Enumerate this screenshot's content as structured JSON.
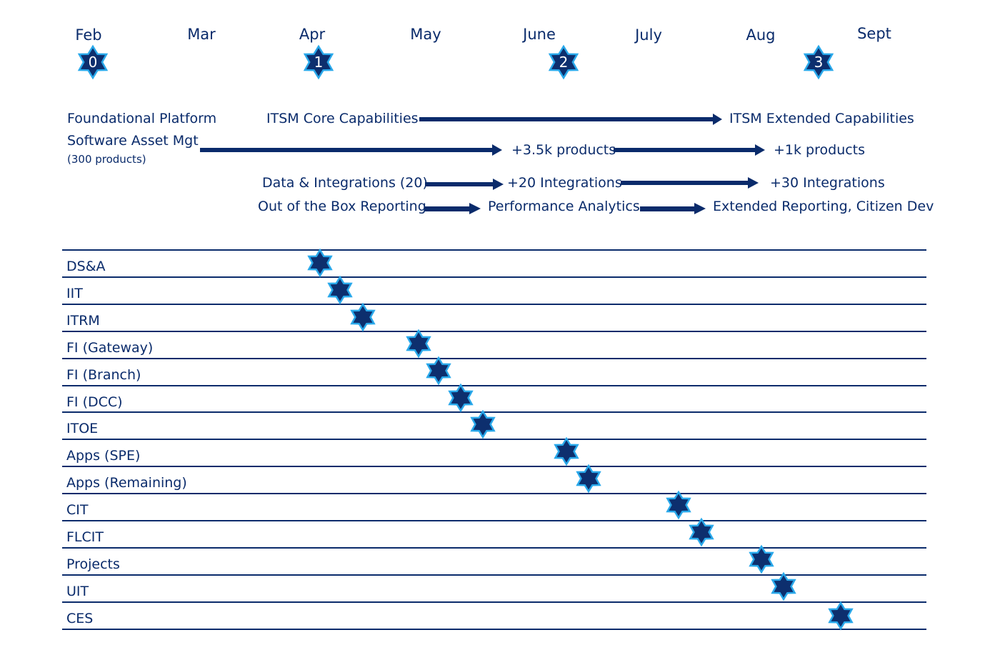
{
  "colors": {
    "navy": "#0a2b6b",
    "star_fill": "#0d2f6e",
    "star_outline": "#29a8ea"
  },
  "months": [
    "Feb",
    "Mar",
    "Apr",
    "May",
    "June",
    "July",
    "Aug",
    "Sept"
  ],
  "milestones": [
    {
      "number": "0",
      "month": "Feb"
    },
    {
      "number": "1",
      "month": "Apr"
    },
    {
      "number": "2",
      "month": "June"
    },
    {
      "number": "3",
      "month": "Aug"
    }
  ],
  "capabilities": {
    "foundational": "Foundational Platform",
    "itsm_core": "ITSM Core Capabilities",
    "itsm_extended": "ITSM Extended Capabilities",
    "sam": "Software Asset Mgt",
    "sam_sub": "(300 products)",
    "sam_plus35k": "+3.5k products",
    "sam_plus1k": "+1k products",
    "data_integrations": "Data & Integrations (20)",
    "plus20": "+20 Integrations",
    "plus30": "+30 Integrations",
    "ootb": "Out of the Box Reporting",
    "perf": "Performance Analytics",
    "extended_reporting": "Extended Reporting, Citizen Dev"
  },
  "rows": [
    {
      "label": "DS&A"
    },
    {
      "label": "IIT"
    },
    {
      "label": "ITRM"
    },
    {
      "label": "FI (Gateway)"
    },
    {
      "label": "FI (Branch)"
    },
    {
      "label": "FI (DCC)"
    },
    {
      "label": "ITOE"
    },
    {
      "label": "Apps (SPE)"
    },
    {
      "label": "Apps (Remaining)"
    },
    {
      "label": "CIT"
    },
    {
      "label": "FLCIT"
    },
    {
      "label": "Projects"
    },
    {
      "label": "UIT"
    },
    {
      "label": "CES"
    }
  ]
}
